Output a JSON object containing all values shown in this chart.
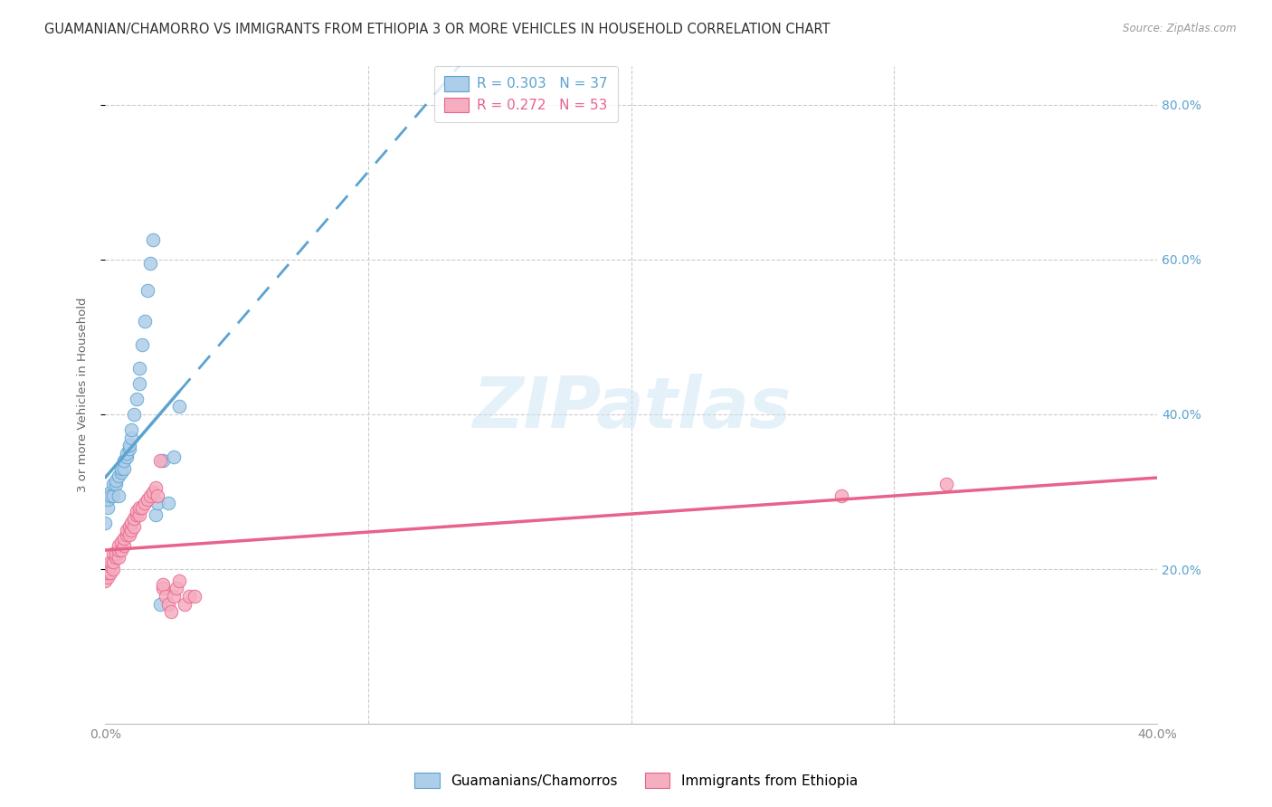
{
  "title": "GUAMANIAN/CHAMORRO VS IMMIGRANTS FROM ETHIOPIA 3 OR MORE VEHICLES IN HOUSEHOLD CORRELATION CHART",
  "source": "Source: ZipAtlas.com",
  "ylabel": "3 or more Vehicles in Household",
  "y_ticks_right": [
    "20.0%",
    "40.0%",
    "60.0%",
    "80.0%"
  ],
  "y_tick_vals": [
    0.2,
    0.4,
    0.6,
    0.8
  ],
  "legend_labels_bottom": [
    "Guamanians/Chamorros",
    "Immigrants from Ethiopia"
  ],
  "blue_color": "#5ba3d0",
  "pink_color": "#e8638b",
  "blue_fill": "#aecde8",
  "pink_fill": "#f5adc0",
  "watermark": "ZIPatlas",
  "blue_scatter_x": [
    0.0,
    0.001,
    0.001,
    0.002,
    0.002,
    0.003,
    0.003,
    0.004,
    0.004,
    0.005,
    0.005,
    0.006,
    0.006,
    0.007,
    0.007,
    0.008,
    0.008,
    0.009,
    0.009,
    0.01,
    0.01,
    0.011,
    0.012,
    0.013,
    0.013,
    0.014,
    0.015,
    0.016,
    0.017,
    0.018,
    0.019,
    0.02,
    0.021,
    0.022,
    0.024,
    0.026,
    0.028
  ],
  "blue_scatter_y": [
    0.26,
    0.28,
    0.29,
    0.3,
    0.295,
    0.295,
    0.31,
    0.31,
    0.315,
    0.32,
    0.295,
    0.325,
    0.33,
    0.33,
    0.34,
    0.345,
    0.35,
    0.355,
    0.36,
    0.37,
    0.38,
    0.4,
    0.42,
    0.44,
    0.46,
    0.49,
    0.52,
    0.56,
    0.595,
    0.625,
    0.27,
    0.285,
    0.155,
    0.34,
    0.285,
    0.345,
    0.41
  ],
  "pink_scatter_x": [
    0.0,
    0.0,
    0.001,
    0.001,
    0.001,
    0.002,
    0.002,
    0.002,
    0.003,
    0.003,
    0.003,
    0.004,
    0.004,
    0.005,
    0.005,
    0.005,
    0.006,
    0.006,
    0.007,
    0.007,
    0.008,
    0.008,
    0.009,
    0.009,
    0.01,
    0.01,
    0.011,
    0.011,
    0.012,
    0.012,
    0.013,
    0.013,
    0.014,
    0.015,
    0.016,
    0.017,
    0.018,
    0.019,
    0.02,
    0.021,
    0.022,
    0.022,
    0.023,
    0.024,
    0.025,
    0.026,
    0.027,
    0.028,
    0.03,
    0.032,
    0.034,
    0.28,
    0.32
  ],
  "pink_scatter_y": [
    0.185,
    0.195,
    0.19,
    0.195,
    0.2,
    0.195,
    0.205,
    0.21,
    0.2,
    0.21,
    0.22,
    0.215,
    0.22,
    0.215,
    0.225,
    0.23,
    0.225,
    0.235,
    0.23,
    0.24,
    0.245,
    0.25,
    0.245,
    0.255,
    0.25,
    0.26,
    0.255,
    0.265,
    0.27,
    0.275,
    0.27,
    0.28,
    0.28,
    0.285,
    0.29,
    0.295,
    0.3,
    0.305,
    0.295,
    0.34,
    0.175,
    0.18,
    0.165,
    0.155,
    0.145,
    0.165,
    0.175,
    0.185,
    0.155,
    0.165,
    0.165,
    0.295,
    0.31
  ],
  "xlim": [
    0.0,
    0.4
  ],
  "ylim": [
    0.0,
    0.85
  ],
  "grid_color": "#cccccc",
  "background_color": "#ffffff",
  "title_fontsize": 10.5,
  "axis_label_fontsize": 9.5,
  "tick_fontsize": 10,
  "right_tick_color": "#5ba3d0",
  "bottom_tick_color": "#888888"
}
